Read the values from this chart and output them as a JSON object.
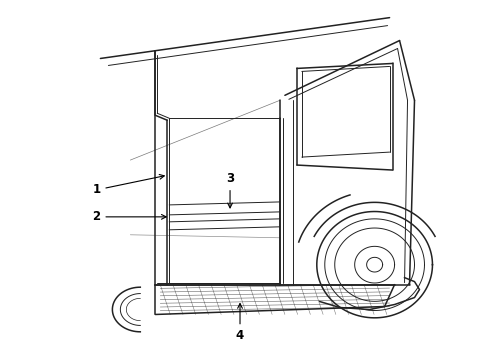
{
  "background_color": "#ffffff",
  "line_color": "#222222",
  "label_color": "#000000",
  "fig_width": 4.9,
  "fig_height": 3.6,
  "dpi": 100,
  "label_fontsize": 8.5
}
